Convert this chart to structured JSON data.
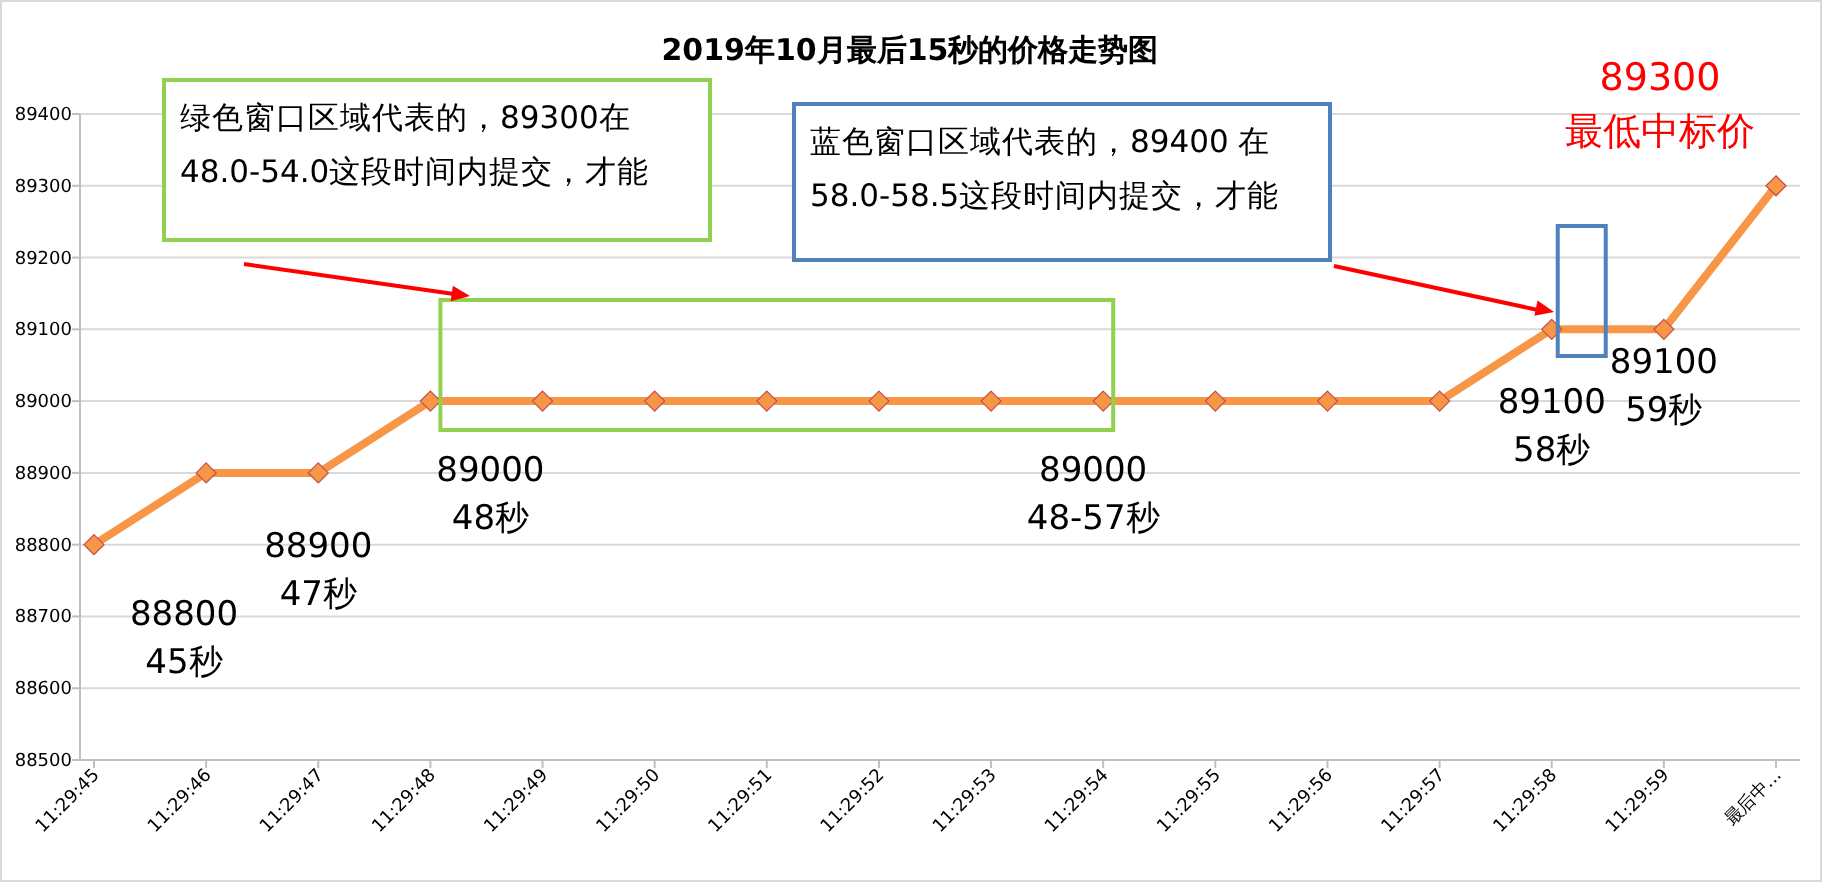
{
  "chart_data": {
    "type": "line",
    "title": "2019年10月最后15秒的价格走势图",
    "categories": [
      "11:29:45",
      "11:29:46",
      "11:29:47",
      "11:29:48",
      "11:29:49",
      "11:29:50",
      "11:29:51",
      "11:29:52",
      "11:29:53",
      "11:29:54",
      "11:29:55",
      "11:29:56",
      "11:29:57",
      "11:29:58",
      "11:29:59",
      "最后中..."
    ],
    "series": [
      {
        "color": "#f79646",
        "values": [
          88800,
          88900,
          88900,
          89000,
          89000,
          89000,
          89000,
          89000,
          89000,
          89000,
          89000,
          89000,
          89000,
          89100,
          89100,
          89300
        ]
      }
    ],
    "ylim": [
      88500,
      89400
    ],
    "yticks": [
      88500,
      88600,
      88700,
      88800,
      88900,
      89000,
      89100,
      89200,
      89300,
      89400
    ],
    "grid": "y",
    "marker": "diamond",
    "annotations": [
      "绿色窗口区域代表的，89300在48.0-54.0这段时间内提交，才能",
      "蓝色窗口区域代表的，89400 在58.0-58.5这段时间内提交，才能",
      {
        "text": "88800 45秒",
        "x": "11:29:45",
        "y": 88800
      },
      {
        "text": "88900 47秒",
        "x": "11:29:47",
        "y": 88900
      },
      {
        "text": "89000 48秒",
        "x": "11:29:48",
        "y": 89000
      },
      {
        "text": "89000 48-57秒",
        "x": "11:29:54",
        "y": 89000
      },
      {
        "text": "89100 58秒",
        "x": "11:29:58",
        "y": 89100
      },
      {
        "text": "89100 59秒",
        "x": "11:29:59",
        "y": 89100
      },
      {
        "text": "89300 最低中标价",
        "x": "最后中...",
        "y": 89300
      }
    ]
  }
}
